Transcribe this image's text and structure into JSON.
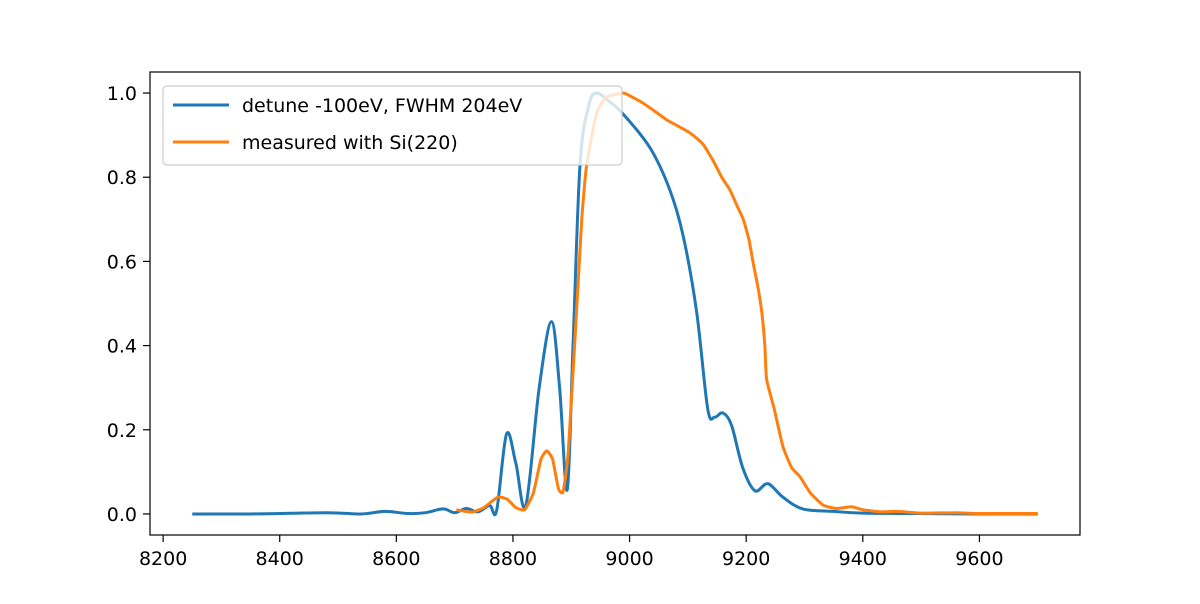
{
  "chart_data": {
    "type": "line",
    "title": "",
    "xlabel": "",
    "ylabel": "",
    "xlim": [
      8177.5,
      9772.5
    ],
    "ylim": [
      -0.05,
      1.05
    ],
    "xticks": [
      "8200",
      "8400",
      "8600",
      "8800",
      "9000",
      "9200",
      "9400",
      "9600"
    ],
    "yticks": [
      "0.0",
      "0.2",
      "0.4",
      "0.6",
      "0.8",
      "1.0"
    ],
    "grid": false,
    "legend_position": "upper-left",
    "series": [
      {
        "name": "detune -100eV, FWHM 204eV",
        "color": "#1f77b4",
        "points": [
          [
            8250,
            0
          ],
          [
            8350,
            0
          ],
          [
            8480,
            0.003
          ],
          [
            8540,
            0
          ],
          [
            8580,
            0.006
          ],
          [
            8620,
            0.001
          ],
          [
            8650,
            0.003
          ],
          [
            8680,
            0.012
          ],
          [
            8700,
            0.003
          ],
          [
            8720,
            0.013
          ],
          [
            8740,
            0.005
          ],
          [
            8760,
            0.02
          ],
          [
            8772,
            0.008
          ],
          [
            8789,
            0.19
          ],
          [
            8805,
            0.12
          ],
          [
            8822,
            0.02
          ],
          [
            8845,
            0.3
          ],
          [
            8866,
            0.457
          ],
          [
            8880,
            0.3
          ],
          [
            8893,
            0.057
          ],
          [
            8903,
            0.4
          ],
          [
            8915,
            0.83
          ],
          [
            8930,
            0.97
          ],
          [
            8943,
            1.0
          ],
          [
            8965,
            0.98
          ],
          [
            8989,
            0.95
          ],
          [
            9035,
            0.87
          ],
          [
            9069,
            0.77
          ],
          [
            9092,
            0.66
          ],
          [
            9115,
            0.48
          ],
          [
            9134,
            0.25
          ],
          [
            9146,
            0.23
          ],
          [
            9160,
            0.24
          ],
          [
            9175,
            0.21
          ],
          [
            9194,
            0.11
          ],
          [
            9215,
            0.055
          ],
          [
            9237,
            0.072
          ],
          [
            9263,
            0.04
          ],
          [
            9297,
            0.012
          ],
          [
            9350,
            0.006
          ],
          [
            9400,
            0.002
          ],
          [
            9500,
            0.001
          ],
          [
            9600,
            0
          ],
          [
            9700,
            0
          ]
        ]
      },
      {
        "name": "measured with Si(220)",
        "color": "#ff7f0e",
        "points": [
          [
            8703,
            0.01
          ],
          [
            8718,
            0.006
          ],
          [
            8732,
            0.005
          ],
          [
            8750,
            0.015
          ],
          [
            8774,
            0.04
          ],
          [
            8790,
            0.035
          ],
          [
            8805,
            0.015
          ],
          [
            8820,
            0.01
          ],
          [
            8835,
            0.05
          ],
          [
            8848,
            0.13
          ],
          [
            8858,
            0.15
          ],
          [
            8868,
            0.13
          ],
          [
            8878,
            0.06
          ],
          [
            8886,
            0.053
          ],
          [
            8895,
            0.15
          ],
          [
            8909,
            0.48
          ],
          [
            8918,
            0.7
          ],
          [
            8926,
            0.825
          ],
          [
            8943,
            0.95
          ],
          [
            8960,
            0.99
          ],
          [
            8989,
            1.0
          ],
          [
            9005,
            0.99
          ],
          [
            9023,
            0.976
          ],
          [
            9045,
            0.955
          ],
          [
            9064,
            0.936
          ],
          [
            9085,
            0.92
          ],
          [
            9104,
            0.905
          ],
          [
            9125,
            0.88
          ],
          [
            9143,
            0.84
          ],
          [
            9158,
            0.8
          ],
          [
            9172,
            0.77
          ],
          [
            9185,
            0.73
          ],
          [
            9195,
            0.7
          ],
          [
            9205,
            0.65
          ],
          [
            9212,
            0.596
          ],
          [
            9220,
            0.54
          ],
          [
            9227,
            0.477
          ],
          [
            9232,
            0.4
          ],
          [
            9235,
            0.32
          ],
          [
            9248,
            0.25
          ],
          [
            9263,
            0.16
          ],
          [
            9278,
            0.11
          ],
          [
            9292,
            0.089
          ],
          [
            9310,
            0.05
          ],
          [
            9332,
            0.021
          ],
          [
            9355,
            0.013
          ],
          [
            9380,
            0.017
          ],
          [
            9400,
            0.01
          ],
          [
            9430,
            0.005
          ],
          [
            9460,
            0.006
          ],
          [
            9500,
            0.002
          ],
          [
            9560,
            0.003
          ],
          [
            9600,
            0.001
          ],
          [
            9700,
            0.001
          ]
        ]
      }
    ]
  }
}
